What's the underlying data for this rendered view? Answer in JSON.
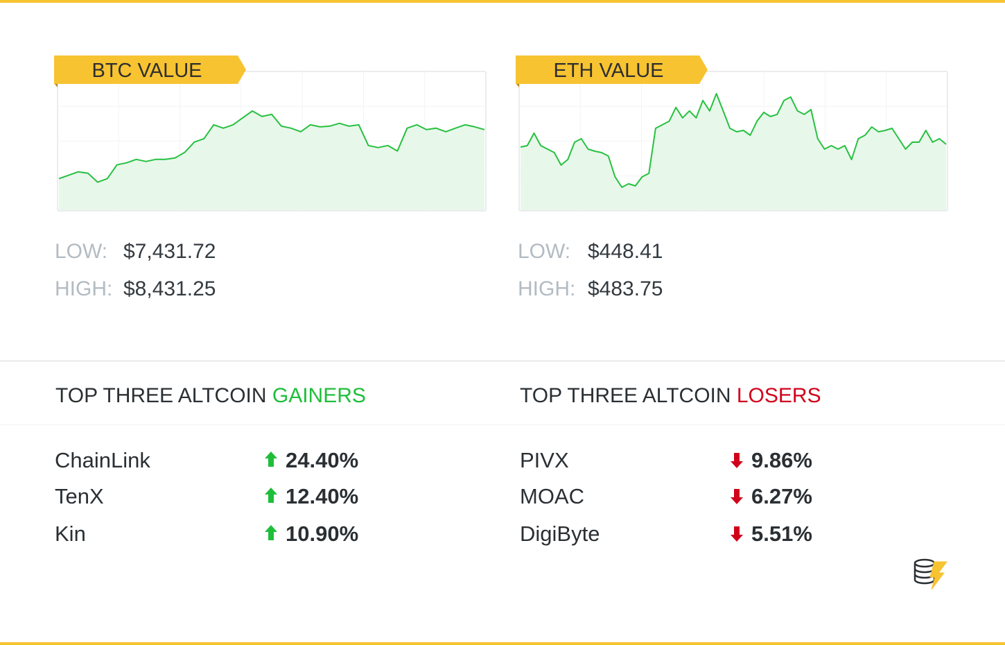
{
  "chart_data": [
    {
      "type": "line",
      "title": "BTC VALUE",
      "color": "#27c040",
      "fill": "#e7f7ea",
      "ylim": [
        7030,
        8985
      ],
      "values": [
        7481,
        7529,
        7578,
        7558,
        7432,
        7481,
        7675,
        7704,
        7752,
        7723,
        7752,
        7752,
        7772,
        7849,
        7995,
        8043,
        8237,
        8189,
        8237,
        8334,
        8431,
        8354,
        8383,
        8218,
        8189,
        8140,
        8237,
        8208,
        8218,
        8257,
        8218,
        8237,
        7946,
        7917,
        7946,
        7869,
        8189,
        8237,
        8169,
        8189,
        8140,
        8189,
        8237,
        8208,
        8169
      ]
    },
    {
      "type": "line",
      "title": "ETH VALUE",
      "color": "#27c040",
      "fill": "#e7f7ea",
      "ylim": [
        440.15,
        492.0
      ],
      "values": [
        463.89,
        464.41,
        469.05,
        464.41,
        463.12,
        461.83,
        457.18,
        459.25,
        465.7,
        466.99,
        463.12,
        462.34,
        461.83,
        460.54,
        452.8,
        448.93,
        450.22,
        449.44,
        452.8,
        454.09,
        470.86,
        472.15,
        473.44,
        478.6,
        474.73,
        477.31,
        474.73,
        481.18,
        477.31,
        483.75,
        477.31,
        470.86,
        469.57,
        470.08,
        468.28,
        473.44,
        476.79,
        475.24,
        476.02,
        481.18,
        482.47,
        477.31,
        476.02,
        477.82,
        466.99,
        463.12,
        464.41,
        463.12,
        464.41,
        459.25,
        466.99,
        468.28,
        471.37,
        469.57,
        470.08,
        470.86,
        466.99,
        463.12,
        465.7,
        465.7,
        470.08,
        465.7,
        466.99,
        464.92
      ]
    }
  ],
  "stats": [
    {
      "low_label": "LOW:",
      "low": "$7,431.72",
      "high_label": "HIGH:",
      "high": "$8,431.25"
    },
    {
      "low_label": "LOW:",
      "low": "$448.41",
      "high_label": "HIGH:",
      "high": "$483.75"
    }
  ],
  "gainers": {
    "title": "TOP THREE ALTCOIN",
    "highlight": "GAINERS",
    "rows": [
      {
        "name": "ChainLink",
        "change": "24.40%"
      },
      {
        "name": "TenX",
        "change": "12.40%"
      },
      {
        "name": "Kin",
        "change": "10.90%"
      }
    ]
  },
  "losers": {
    "title": "TOP THREE ALTCOIN",
    "highlight": "LOSERS",
    "rows": [
      {
        "name": "PIVX",
        "change": "9.86%"
      },
      {
        "name": "MOAC",
        "change": "6.27%"
      },
      {
        "name": "DigiByte",
        "change": "5.51%"
      }
    ]
  }
}
